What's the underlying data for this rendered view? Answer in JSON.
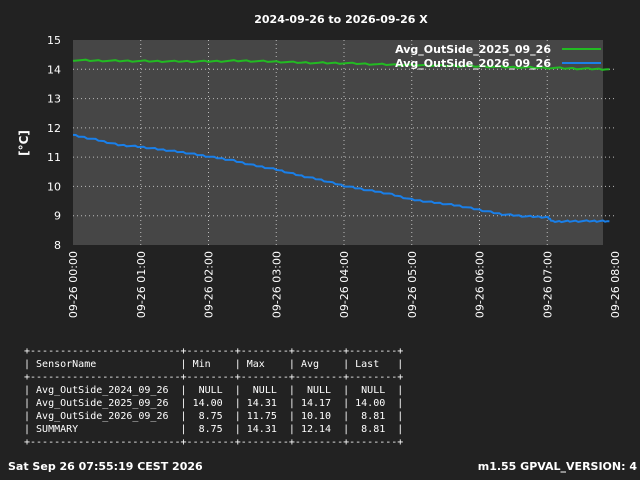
{
  "chart_data": {
    "type": "line",
    "title": "2024-09-26 to 2026-09-26 X",
    "ylabel": "[°C]",
    "xlabel": "",
    "ylim": [
      8,
      15
    ],
    "xlim": [
      "09-26 00:00",
      "09-26 08:00"
    ],
    "yticks": [
      "8",
      "9",
      "10",
      "11",
      "12",
      "13",
      "14",
      "15"
    ],
    "xticks": [
      "09-26 00:00",
      "09-26 01:00",
      "09-26 02:00",
      "09-26 03:00",
      "09-26 04:00",
      "09-26 05:00",
      "09-26 06:00",
      "09-26 07:00",
      "09-26 08:00"
    ],
    "grid": true,
    "legend_position": "top-right",
    "series": [
      {
        "name": "Avg_OutSide_2025_09_26",
        "color": "#22bb22",
        "x": [
          "00:00",
          "00:30",
          "01:00",
          "01:30",
          "02:00",
          "02:30",
          "03:00",
          "03:30",
          "04:00",
          "04:30",
          "05:00",
          "05:30",
          "06:00",
          "06:30",
          "07:00",
          "07:30",
          "07:55"
        ],
        "y": [
          14.31,
          14.29,
          14.28,
          14.27,
          14.27,
          14.29,
          14.26,
          14.22,
          14.21,
          14.17,
          14.14,
          14.12,
          14.1,
          14.07,
          14.05,
          14.02,
          14.0
        ]
      },
      {
        "name": "Avg_OutSide_2026_09_26",
        "color": "#1a7fe8",
        "x": [
          "00:00",
          "00:20",
          "00:40",
          "01:00",
          "01:20",
          "01:40",
          "02:00",
          "02:20",
          "02:40",
          "03:00",
          "03:20",
          "03:40",
          "04:00",
          "04:20",
          "04:40",
          "05:00",
          "05:20",
          "05:40",
          "06:00",
          "06:20",
          "06:40",
          "07:00",
          "07:05",
          "07:20",
          "07:40",
          "07:55"
        ],
        "y": [
          11.75,
          11.6,
          11.42,
          11.35,
          11.25,
          11.15,
          11.02,
          10.9,
          10.72,
          10.58,
          10.38,
          10.22,
          10.02,
          9.88,
          9.75,
          9.55,
          9.45,
          9.35,
          9.2,
          9.05,
          8.98,
          8.95,
          8.8,
          8.81,
          8.82,
          8.81
        ]
      }
    ]
  },
  "table": {
    "border": "+-------------------------+--------+--------+--------+--------+",
    "header": "| SensorName              | Min    | Max    | Avg    | Last   |",
    "rows": [
      "| Avg_OutSide_2024_09_26  |  NULL  |  NULL  |  NULL  |  NULL  |",
      "| Avg_OutSide_2025_09_26  | 14.00  | 14.31  | 14.17  | 14.00  |",
      "| Avg_OutSide_2026_09_26  |  8.75  | 11.75  | 10.10  |  8.81  |",
      "| SUMMARY                 |  8.75  | 14.31  | 12.14  |  8.81  |"
    ]
  },
  "footer": {
    "left": "Sat Sep 26 07:55:19 CEST 2026",
    "right": "m1.55 GPVAL_VERSION: 4"
  }
}
